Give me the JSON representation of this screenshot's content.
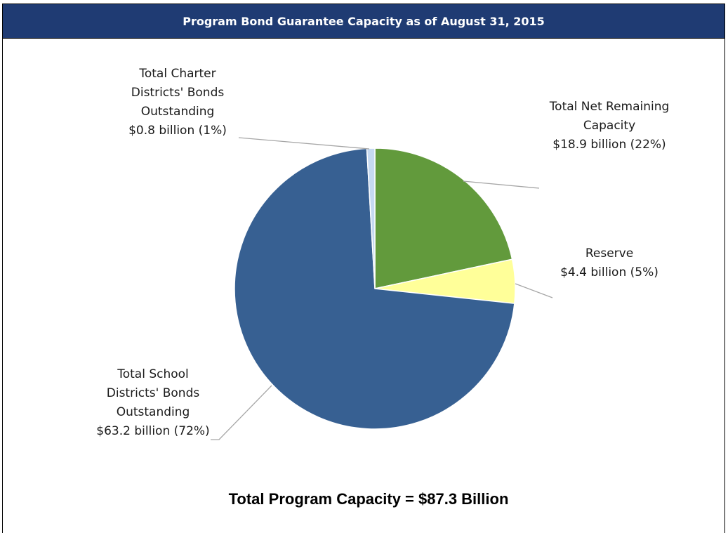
{
  "header": {
    "title": "Program Bond Guarantee Capacity as of August 31, 2015"
  },
  "footer": {
    "total": "Total Program Capacity = $87.3 Billion"
  },
  "chart_data": {
    "type": "pie",
    "title": "Program Bond Guarantee Capacity as of August 31, 2015",
    "slices": [
      {
        "name": "Total Net Remaining Capacity",
        "value": 18.9,
        "percent": 22,
        "color": "#629a3c",
        "label_lines": [
          "Total Net Remaining",
          "Capacity",
          "$18.9 billion (22%)"
        ]
      },
      {
        "name": "Reserve",
        "value": 4.4,
        "percent": 5,
        "color": "#ffff99",
        "label_lines": [
          "Reserve",
          "$4.4 billion (5%)"
        ]
      },
      {
        "name": "Total School Districts' Bonds Outstanding",
        "value": 63.2,
        "percent": 72,
        "color": "#376092",
        "label_lines": [
          "Total School",
          "Districts' Bonds",
          "Outstanding",
          "$63.2 billion (72%)"
        ]
      },
      {
        "name": "Total Charter Districts' Bonds Outstanding",
        "value": 0.8,
        "percent": 1,
        "color": "#c5d9f1",
        "label_lines": [
          "Total Charter",
          "Districts' Bonds",
          "Outstanding",
          "$0.8 billion (1%)"
        ]
      }
    ]
  }
}
